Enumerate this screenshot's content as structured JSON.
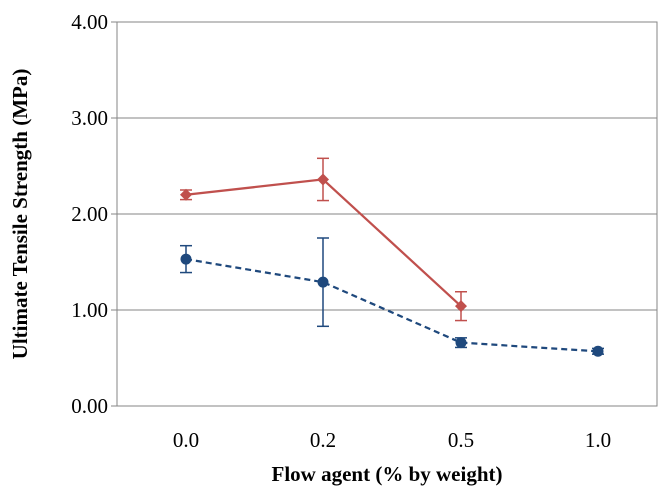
{
  "chart_data": {
    "type": "line",
    "title": "",
    "xlabel": "Flow agent (% by weight)",
    "ylabel": "Ultimate Tensile Strength (MPa)",
    "categories": [
      "0.0",
      "0.2",
      "0.5",
      "1.0"
    ],
    "ylim": [
      0,
      4
    ],
    "yticks": [
      "0.00",
      "1.00",
      "2.00",
      "3.00",
      "4.00"
    ],
    "ytick_values": [
      0,
      1,
      2,
      3,
      4
    ],
    "grid": "horizontal",
    "series": [
      {
        "values": [
          2.2,
          2.36,
          1.04,
          null
        ],
        "error": [
          0.05,
          0.22,
          0.15,
          null
        ],
        "color": "#c0504d",
        "marker": "diamond",
        "line_style": "solid"
      },
      {
        "values": [
          1.53,
          1.29,
          0.66,
          0.57
        ],
        "error": [
          0.14,
          0.46,
          0.05,
          0.03
        ],
        "color": "#1f497d",
        "marker": "circle",
        "line_style": "dashed"
      }
    ]
  }
}
